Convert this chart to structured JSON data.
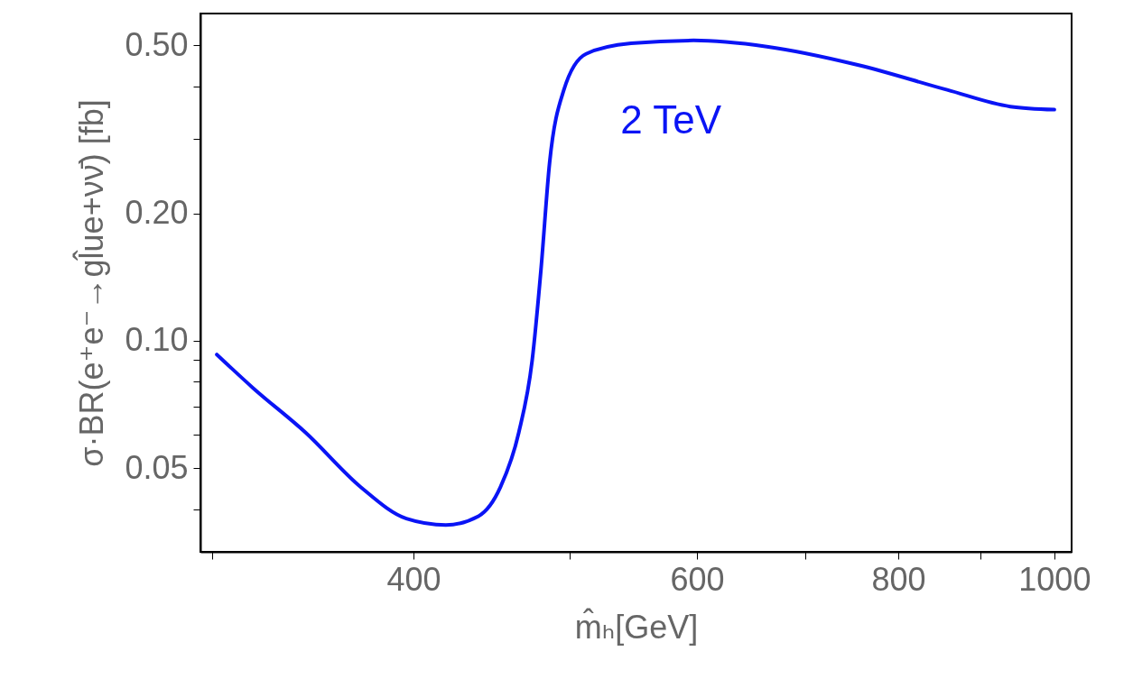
{
  "chart_data": {
    "type": "line",
    "xlabel": "m̂ₕ[GeV]",
    "ylabel": "σ·BR(e⁺e⁻→gl̂ue+νν̄) [fb]",
    "log": "xy",
    "grid": false,
    "xlim": [
      295,
      1025
    ],
    "ylim": [
      0.0317,
      0.594
    ],
    "xticks": [
      {
        "value": 300,
        "label": null
      },
      400,
      {
        "value": 500,
        "label": null
      },
      600,
      {
        "value": 700,
        "label": null
      },
      800,
      {
        "value": 900,
        "label": null
      },
      1000
    ],
    "yticks": [
      {
        "value": 0.04,
        "label": null
      },
      0.05,
      {
        "value": 0.06,
        "label": null
      },
      {
        "value": 0.07,
        "label": null
      },
      {
        "value": 0.08,
        "label": null
      },
      {
        "value": 0.09,
        "label": null
      },
      {
        "value": 0.1,
        "label": "0.10"
      },
      {
        "value": 0.2,
        "label": "0.20"
      },
      {
        "value": 0.3,
        "label": null
      },
      {
        "value": 0.4,
        "label": null
      },
      {
        "value": 0.5,
        "label": "0.50"
      }
    ],
    "legend": false,
    "series": [
      {
        "name": "2 TeV",
        "color": "#0a14f5",
        "x": [
          302,
          318,
          343,
          371,
          396,
          419,
          439,
          453,
          465,
          474,
          480,
          486,
          496,
          512,
          546,
          597,
          663,
          755,
          858,
          939,
          1000
        ],
        "values": [
          0.0928,
          0.0774,
          0.0606,
          0.0451,
          0.038,
          0.0367,
          0.0385,
          0.0451,
          0.0606,
          0.0897,
          0.147,
          0.264,
          0.392,
          0.477,
          0.505,
          0.513,
          0.496,
          0.449,
          0.392,
          0.358,
          0.352
        ]
      }
    ]
  }
}
